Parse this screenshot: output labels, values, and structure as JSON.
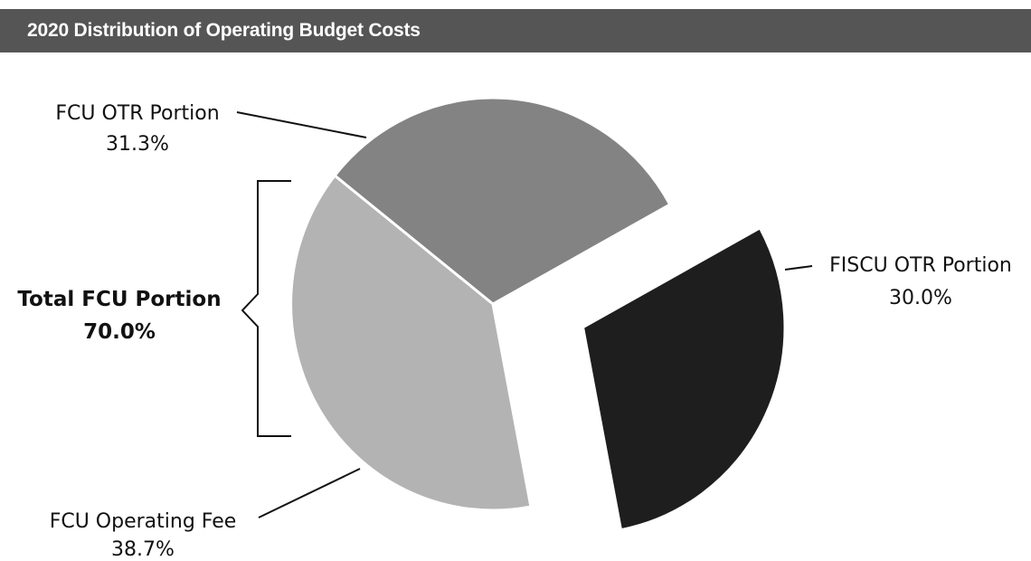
{
  "chart_data": {
    "type": "pie",
    "title": "2020 Distribution of Operating Budget Costs",
    "slices": [
      {
        "label": "FCU OTR Portion",
        "value": 31.3,
        "value_label": "31.3%",
        "color": "#838383"
      },
      {
        "label": "FISCU OTR Portion",
        "value": 30.0,
        "value_label": "30.0%",
        "color": "#1e1e1e",
        "exploded": true
      },
      {
        "label": "FCU Operating Fee",
        "value": 38.7,
        "value_label": "38.7%",
        "color": "#b3b3b3"
      }
    ],
    "group_annotation": {
      "label": "Total FCU Portion",
      "value_label": "70.0%",
      "members": [
        "FCU OTR Portion",
        "FCU Operating Fee"
      ]
    }
  }
}
